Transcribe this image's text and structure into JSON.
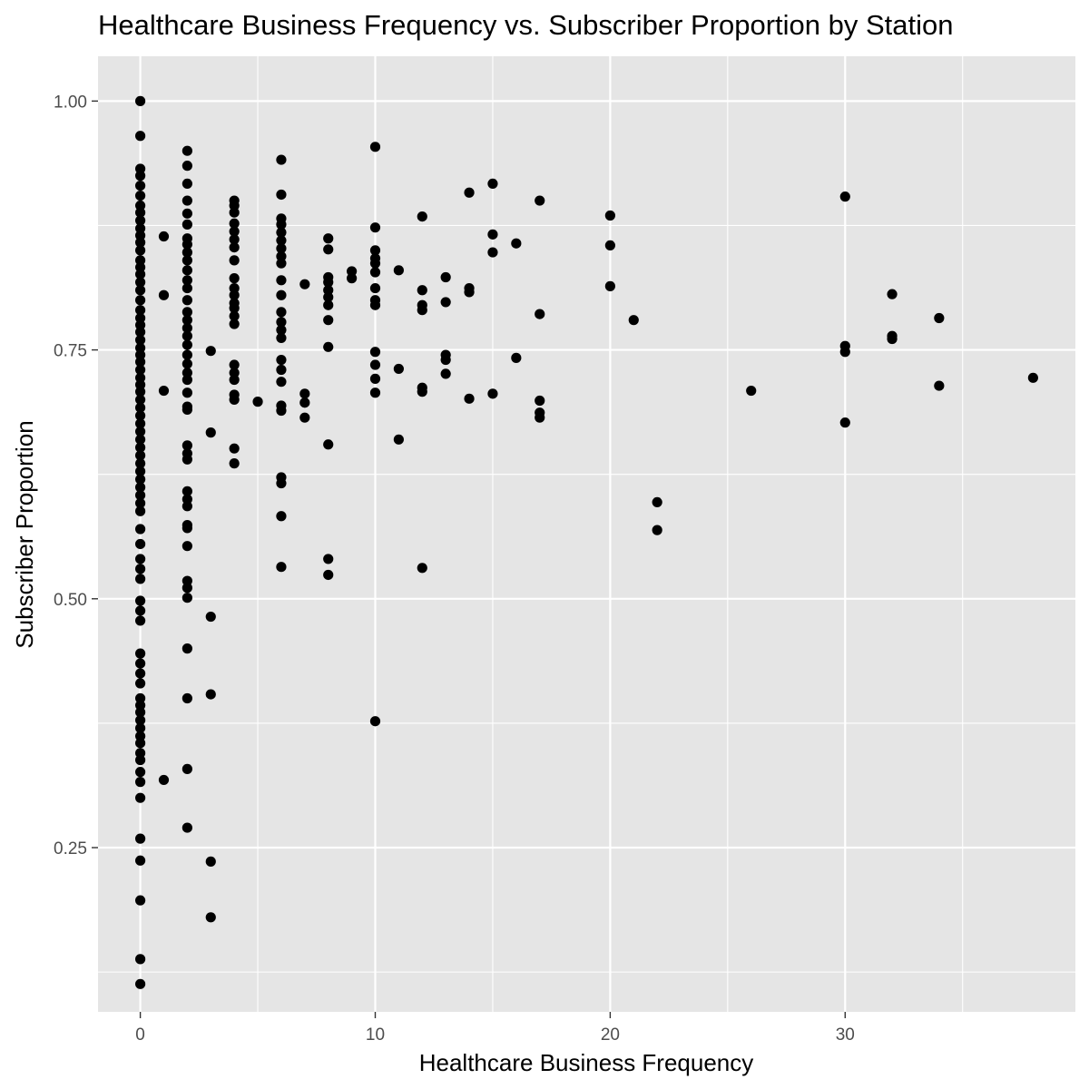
{
  "chart_data": {
    "type": "scatter",
    "title": "Healthcare Business Frequency vs. Subscriber Proportion by Station",
    "xlabel": "Healthcare Business Frequency",
    "ylabel": "Subscriber Proportion",
    "xlim": [
      -1.8,
      39.8
    ],
    "ylim": [
      0.085,
      1.045
    ],
    "x_ticks": [
      0,
      10,
      20,
      30
    ],
    "x_tick_labels": [
      "0",
      "10",
      "20",
      "30"
    ],
    "x_minor_ticks": [
      5,
      15,
      25,
      35
    ],
    "y_ticks": [
      0.25,
      0.5,
      0.75,
      1.0
    ],
    "y_tick_labels": [
      "0.25",
      "0.50",
      "0.75",
      "1.00"
    ],
    "y_minor_ticks": [
      0.125,
      0.375,
      0.625,
      0.875
    ],
    "grid": true,
    "legend": "none",
    "colors": {
      "panel": "#e5e5e5",
      "grid": "#ffffff",
      "point": "#000000",
      "tick_label": "#4d4d4d",
      "tick_mark": "#333333"
    },
    "series": [
      {
        "points": [
          [
            0,
            1.0
          ],
          [
            0,
            0.965
          ],
          [
            0,
            0.932
          ],
          [
            0,
            0.925
          ],
          [
            0,
            0.915
          ],
          [
            0,
            0.905
          ],
          [
            0,
            0.895
          ],
          [
            0,
            0.888
          ],
          [
            0,
            0.88
          ],
          [
            0,
            0.872
          ],
          [
            0,
            0.865
          ],
          [
            0,
            0.858
          ],
          [
            0,
            0.85
          ],
          [
            0,
            0.84
          ],
          [
            0,
            0.833
          ],
          [
            0,
            0.826
          ],
          [
            0,
            0.818
          ],
          [
            0,
            0.81
          ],
          [
            0,
            0.8
          ],
          [
            0,
            0.79
          ],
          [
            0,
            0.782
          ],
          [
            0,
            0.775
          ],
          [
            0,
            0.768
          ],
          [
            0,
            0.76
          ],
          [
            0,
            0.752
          ],
          [
            0,
            0.745
          ],
          [
            0,
            0.738
          ],
          [
            0,
            0.73
          ],
          [
            0,
            0.722
          ],
          [
            0,
            0.715
          ],
          [
            0,
            0.708
          ],
          [
            0,
            0.7
          ],
          [
            0,
            0.692
          ],
          [
            0,
            0.684
          ],
          [
            0,
            0.676
          ],
          [
            0,
            0.668
          ],
          [
            0,
            0.66
          ],
          [
            0,
            0.652
          ],
          [
            0,
            0.644
          ],
          [
            0,
            0.636
          ],
          [
            0,
            0.628
          ],
          [
            0,
            0.62
          ],
          [
            0,
            0.612
          ],
          [
            0,
            0.604
          ],
          [
            0,
            0.596
          ],
          [
            0,
            0.588
          ],
          [
            0,
            0.57
          ],
          [
            0,
            0.555
          ],
          [
            0,
            0.54
          ],
          [
            0,
            0.53
          ],
          [
            0,
            0.52
          ],
          [
            0,
            0.498
          ],
          [
            0,
            0.488
          ],
          [
            0,
            0.478
          ],
          [
            0,
            0.445
          ],
          [
            0,
            0.435
          ],
          [
            0,
            0.425
          ],
          [
            0,
            0.415
          ],
          [
            0,
            0.4
          ],
          [
            0,
            0.393
          ],
          [
            0,
            0.386
          ],
          [
            0,
            0.378
          ],
          [
            0,
            0.37
          ],
          [
            0,
            0.362
          ],
          [
            0,
            0.355
          ],
          [
            0,
            0.345
          ],
          [
            0,
            0.338
          ],
          [
            0,
            0.326
          ],
          [
            0,
            0.316
          ],
          [
            0,
            0.3
          ],
          [
            0,
            0.259
          ],
          [
            0,
            0.237
          ],
          [
            0,
            0.197
          ],
          [
            0,
            0.138
          ],
          [
            0,
            0.113
          ],
          [
            1,
            0.864
          ],
          [
            1,
            0.805
          ],
          [
            1,
            0.709
          ],
          [
            1,
            0.318
          ],
          [
            2,
            0.95
          ],
          [
            2,
            0.935
          ],
          [
            2,
            0.917
          ],
          [
            2,
            0.9
          ],
          [
            2,
            0.887
          ],
          [
            2,
            0.876
          ],
          [
            2,
            0.862
          ],
          [
            2,
            0.856
          ],
          [
            2,
            0.848
          ],
          [
            2,
            0.84
          ],
          [
            2,
            0.83
          ],
          [
            2,
            0.82
          ],
          [
            2,
            0.812
          ],
          [
            2,
            0.8
          ],
          [
            2,
            0.788
          ],
          [
            2,
            0.78
          ],
          [
            2,
            0.772
          ],
          [
            2,
            0.764
          ],
          [
            2,
            0.755
          ],
          [
            2,
            0.745
          ],
          [
            2,
            0.736
          ],
          [
            2,
            0.727
          ],
          [
            2,
            0.72
          ],
          [
            2,
            0.707
          ],
          [
            2,
            0.693
          ],
          [
            2,
            0.69
          ],
          [
            2,
            0.654
          ],
          [
            2,
            0.646
          ],
          [
            2,
            0.64
          ],
          [
            2,
            0.608
          ],
          [
            2,
            0.6
          ],
          [
            2,
            0.593
          ],
          [
            2,
            0.574
          ],
          [
            2,
            0.571
          ],
          [
            2,
            0.553
          ],
          [
            2,
            0.518
          ],
          [
            2,
            0.511
          ],
          [
            2,
            0.501
          ],
          [
            2,
            0.45
          ],
          [
            2,
            0.4
          ],
          [
            2,
            0.329
          ],
          [
            2,
            0.27
          ],
          [
            3,
            0.749
          ],
          [
            3,
            0.667
          ],
          [
            3,
            0.482
          ],
          [
            3,
            0.404
          ],
          [
            3,
            0.236
          ],
          [
            3,
            0.18
          ],
          [
            4,
            0.9
          ],
          [
            4,
            0.895
          ],
          [
            4,
            0.888
          ],
          [
            4,
            0.877
          ],
          [
            4,
            0.869
          ],
          [
            4,
            0.861
          ],
          [
            4,
            0.853
          ],
          [
            4,
            0.84
          ],
          [
            4,
            0.822
          ],
          [
            4,
            0.812
          ],
          [
            4,
            0.805
          ],
          [
            4,
            0.797
          ],
          [
            4,
            0.792
          ],
          [
            4,
            0.784
          ],
          [
            4,
            0.776
          ],
          [
            4,
            0.735
          ],
          [
            4,
            0.727
          ],
          [
            4,
            0.72
          ],
          [
            4,
            0.705
          ],
          [
            4,
            0.7
          ],
          [
            4,
            0.651
          ],
          [
            4,
            0.636
          ],
          [
            5,
            0.698
          ],
          [
            6,
            0.941
          ],
          [
            6,
            0.906
          ],
          [
            6,
            0.882
          ],
          [
            6,
            0.876
          ],
          [
            6,
            0.868
          ],
          [
            6,
            0.86
          ],
          [
            6,
            0.852
          ],
          [
            6,
            0.844
          ],
          [
            6,
            0.837
          ],
          [
            6,
            0.82
          ],
          [
            6,
            0.805
          ],
          [
            6,
            0.788
          ],
          [
            6,
            0.778
          ],
          [
            6,
            0.77
          ],
          [
            6,
            0.762
          ],
          [
            6,
            0.74
          ],
          [
            6,
            0.73
          ],
          [
            6,
            0.718
          ],
          [
            6,
            0.694
          ],
          [
            6,
            0.689
          ],
          [
            6,
            0.622
          ],
          [
            6,
            0.616
          ],
          [
            6,
            0.583
          ],
          [
            6,
            0.532
          ],
          [
            7,
            0.816
          ],
          [
            7,
            0.706
          ],
          [
            7,
            0.697
          ],
          [
            7,
            0.682
          ],
          [
            8,
            0.862
          ],
          [
            8,
            0.851
          ],
          [
            8,
            0.823
          ],
          [
            8,
            0.818
          ],
          [
            8,
            0.81
          ],
          [
            8,
            0.803
          ],
          [
            8,
            0.795
          ],
          [
            8,
            0.78
          ],
          [
            8,
            0.753
          ],
          [
            8,
            0.655
          ],
          [
            8,
            0.54
          ],
          [
            8,
            0.524
          ],
          [
            9,
            0.829
          ],
          [
            9,
            0.822
          ],
          [
            10,
            0.954
          ],
          [
            10,
            0.873
          ],
          [
            10,
            0.85
          ],
          [
            10,
            0.842
          ],
          [
            10,
            0.837
          ],
          [
            10,
            0.828
          ],
          [
            10,
            0.812
          ],
          [
            10,
            0.8
          ],
          [
            10,
            0.795
          ],
          [
            10,
            0.748
          ],
          [
            10,
            0.735
          ],
          [
            10,
            0.721
          ],
          [
            10,
            0.707
          ],
          [
            10,
            0.377
          ],
          [
            11,
            0.83
          ],
          [
            11,
            0.731
          ],
          [
            11,
            0.66
          ],
          [
            12,
            0.884
          ],
          [
            12,
            0.81
          ],
          [
            12,
            0.795
          ],
          [
            12,
            0.79
          ],
          [
            12,
            0.712
          ],
          [
            12,
            0.708
          ],
          [
            12,
            0.531
          ],
          [
            13,
            0.823
          ],
          [
            13,
            0.798
          ],
          [
            13,
            0.745
          ],
          [
            13,
            0.74
          ],
          [
            13,
            0.726
          ],
          [
            14,
            0.908
          ],
          [
            14,
            0.812
          ],
          [
            14,
            0.808
          ],
          [
            14,
            0.701
          ],
          [
            15,
            0.917
          ],
          [
            15,
            0.866
          ],
          [
            15,
            0.848
          ],
          [
            15,
            0.706
          ],
          [
            16,
            0.857
          ],
          [
            16,
            0.742
          ],
          [
            17,
            0.9
          ],
          [
            17,
            0.786
          ],
          [
            17,
            0.699
          ],
          [
            17,
            0.687
          ],
          [
            17,
            0.682
          ],
          [
            20,
            0.885
          ],
          [
            20,
            0.855
          ],
          [
            20,
            0.814
          ],
          [
            21,
            0.78
          ],
          [
            22,
            0.597
          ],
          [
            22,
            0.569
          ],
          [
            26,
            0.709
          ],
          [
            30,
            0.904
          ],
          [
            30,
            0.754
          ],
          [
            30,
            0.748
          ],
          [
            30,
            0.677
          ],
          [
            32,
            0.806
          ],
          [
            32,
            0.764
          ],
          [
            32,
            0.761
          ],
          [
            34,
            0.782
          ],
          [
            34,
            0.714
          ],
          [
            38,
            0.722
          ]
        ]
      }
    ]
  }
}
